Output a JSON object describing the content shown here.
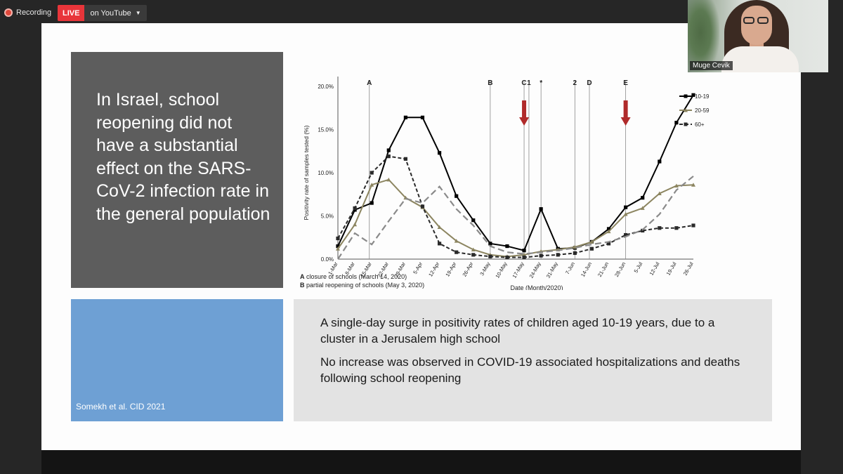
{
  "topbar": {
    "recording_label": "Recording",
    "live_label": "LIVE",
    "stream_target_label": "on YouTube"
  },
  "slide": {
    "title": "In Israel, school reopening did not have a substantial effect on the SARS-CoV-2 infection rate in the general population",
    "citation": "Somekh et al. CID 2021",
    "bullets": [
      "A single-day surge in positivity rates of children aged 10-19 years, due to a cluster in a Jerusalem high school",
      "No increase was observed in COVID-19 associated hospitalizations and deaths following school reopening"
    ],
    "footnotes": [
      {
        "key": "A",
        "text": "closure of schools (March 14, 2020)"
      },
      {
        "key": "B",
        "text": "partial reopening of schools (May 3, 2020)"
      }
    ]
  },
  "webcam": {
    "participant_name": "Muge Cevik"
  },
  "colors": {
    "slide_left_panel": "#5d5d5d",
    "slide_blue_panel": "#6ea0d4",
    "slide_right_panel": "#e3e3e3",
    "live_badge": "#e8353a",
    "series_10_19": "#000000",
    "series_20_59": "#8c8560",
    "series_60_plus": "#2a2a2a",
    "series_grey_dash": "#8a8a8a",
    "marker_arrow": "#b02a2a"
  },
  "chart_data": {
    "type": "line",
    "ylabel": "Positivity rate  of samples  tested (%)",
    "xlabel": "Date (Month/2020)",
    "ylim": [
      0,
      20
    ],
    "yticks": [
      "0.0%",
      "5.0%",
      "10.0%",
      "15.0%",
      "20.0%"
    ],
    "ytick_values": [
      0,
      5,
      10,
      15,
      20
    ],
    "categories": [
      "1-Mar",
      "8-Mar",
      "15-Mar",
      "22-Mar",
      "29-Mar",
      "5-Apr",
      "12-Apr",
      "19-Apr",
      "26-Apr",
      "3-May",
      "10-May",
      "17-May",
      "24-May",
      "31-May",
      "7-Jun",
      "14-Jun",
      "21-Jun",
      "28-Jun",
      "5-Jul",
      "12-Jul",
      "19-Jul",
      "26-Jul"
    ],
    "series": [
      {
        "name": "10-19",
        "style": "solid",
        "marker": "square",
        "values": [
          1.5,
          5.7,
          6.5,
          12.6,
          16.4,
          16.4,
          12.3,
          7.3,
          4.5,
          1.8,
          1.5,
          1.0,
          5.8,
          1.2,
          1.3,
          2.0,
          3.5,
          6.0,
          7.1,
          11.3,
          15.8,
          19.0
        ]
      },
      {
        "name": "20-59",
        "style": "solid",
        "marker": "triangle",
        "values": [
          1.2,
          4.0,
          8.6,
          9.2,
          7.1,
          6.0,
          3.7,
          2.1,
          1.1,
          0.5,
          0.3,
          0.5,
          0.9,
          1.1,
          1.4,
          2.0,
          3.2,
          5.2,
          5.9,
          7.6,
          8.5,
          8.6
        ]
      },
      {
        "name": "60+",
        "style": "dashed",
        "marker": "square",
        "values": [
          2.4,
          5.9,
          10.0,
          11.9,
          11.6,
          6.1,
          1.8,
          0.8,
          0.5,
          0.3,
          0.2,
          0.2,
          0.4,
          0.5,
          0.7,
          1.2,
          1.8,
          2.8,
          3.3,
          3.6,
          3.6,
          3.9
        ]
      },
      {
        "style": "dashed",
        "marker": "triangle",
        "values": [
          0.0,
          3.0,
          1.7,
          4.4,
          7.0,
          6.5,
          8.4,
          5.8,
          3.9,
          1.5,
          0.8,
          0.6,
          0.8,
          1.0,
          1.3,
          1.7,
          2.0,
          2.6,
          3.4,
          5.2,
          8.0,
          9.6
        ]
      }
    ],
    "event_lines": [
      {
        "label": "A",
        "date": "14-Mar",
        "color": "#222222"
      },
      {
        "label": "B",
        "date": "3-May",
        "color": "#222222"
      },
      {
        "label": "C",
        "date": "17-May",
        "color": "#222222"
      },
      {
        "label": "1",
        "date": "19-May",
        "color": "#2e7bbf"
      },
      {
        "label": "*",
        "date": "24-May",
        "color": "#222222"
      },
      {
        "label": "2",
        "date": "7-Jun",
        "color": "#2e7bbf"
      },
      {
        "label": "D",
        "date": "13-Jun",
        "color": "#222222"
      },
      {
        "label": "E",
        "date": "28-Jun",
        "color": "#222222"
      }
    ],
    "arrows": [
      "17-May",
      "28-Jun"
    ],
    "legend_position": "top-right",
    "grid": false
  }
}
